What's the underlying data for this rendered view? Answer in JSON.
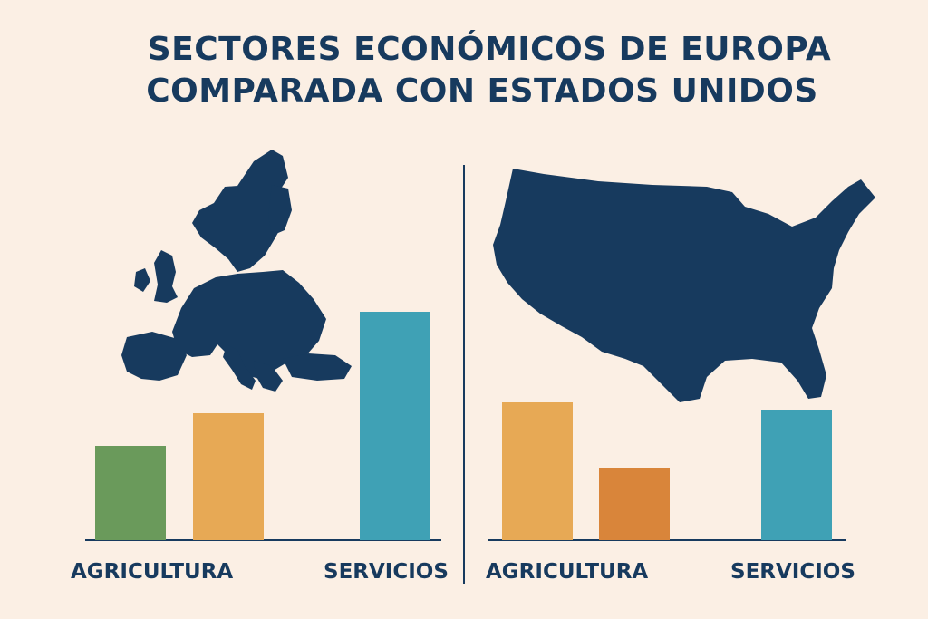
{
  "title": {
    "line1": "SECTORES ECONÓMICOS DE EUROPA",
    "line2": "COMPARADA CON ESTADOS UNIDOS"
  },
  "colors": {
    "background": "#fbefe4",
    "navy": "#173a5e",
    "green": "#6a9a5b",
    "yellow": "#e7a955",
    "orange": "#d9853a",
    "teal": "#3fa1b5"
  },
  "icons": [
    "europe-map",
    "usa-map"
  ],
  "chart_data": [
    {
      "type": "bar",
      "region": "Europa",
      "categories": [
        "AGRICULTURA",
        "",
        "SERVICIOS"
      ],
      "values": [
        26,
        35,
        63
      ],
      "bar_colors": [
        "#6a9a5b",
        "#e7a955",
        "#3fa1b5"
      ],
      "ylim": [
        0,
        100
      ],
      "grid": false,
      "labels": [
        "AGRICULTURA",
        "SERVICIOS"
      ]
    },
    {
      "type": "bar",
      "region": "Estados Unidos",
      "categories": [
        "AGRICULTURA",
        "",
        "SERVICIOS"
      ],
      "values": [
        38,
        20,
        36
      ],
      "bar_colors": [
        "#e7a955",
        "#d9853a",
        "#3fa1b5"
      ],
      "ylim": [
        0,
        100
      ],
      "grid": false,
      "labels": [
        "AGRICULTURA",
        "SERVICIOS"
      ]
    }
  ]
}
